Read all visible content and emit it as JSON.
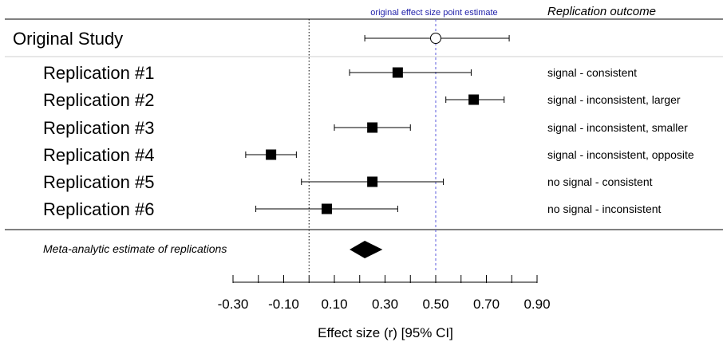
{
  "chart_data": {
    "type": "forest",
    "xlabel": "Effect size (r) [95% CI]",
    "xlim": [
      -0.3,
      0.9
    ],
    "xticks": [
      "-0.30",
      "-0.10",
      "0.10",
      "0.30",
      "0.50",
      "0.70",
      "0.90"
    ],
    "xtick_values": [
      -0.3,
      -0.1,
      0.1,
      0.3,
      0.5,
      0.7,
      0.9
    ],
    "minor_tick_values": [
      -0.3,
      -0.2,
      -0.1,
      0.0,
      0.1,
      0.2,
      0.3,
      0.4,
      0.5,
      0.6,
      0.7,
      0.8,
      0.9
    ],
    "null_line": 0.0,
    "reference_line": {
      "value": 0.5,
      "label": "original effect size point estimate",
      "color": "#5a5adc"
    },
    "header_outcome": "Replication outcome",
    "original": {
      "label": "Original Study",
      "estimate": 0.5,
      "lower": 0.22,
      "upper": 0.79
    },
    "replications": [
      {
        "label": "Replication #1",
        "estimate": 0.35,
        "lower": 0.16,
        "upper": 0.64,
        "outcome": "signal - consistent"
      },
      {
        "label": "Replication #2",
        "estimate": 0.65,
        "lower": 0.54,
        "upper": 0.77,
        "outcome": "signal - inconsistent, larger"
      },
      {
        "label": "Replication #3",
        "estimate": 0.25,
        "lower": 0.1,
        "upper": 0.4,
        "outcome": "signal - inconsistent, smaller"
      },
      {
        "label": "Replication #4",
        "estimate": -0.15,
        "lower": -0.25,
        "upper": -0.05,
        "outcome": "signal - inconsistent, opposite"
      },
      {
        "label": "Replication #5",
        "estimate": 0.25,
        "lower": -0.03,
        "upper": 0.53,
        "outcome": "no signal - consistent"
      },
      {
        "label": "Replication #6",
        "estimate": 0.07,
        "lower": -0.21,
        "upper": 0.35,
        "outcome": "no signal - inconsistent"
      }
    ],
    "meta": {
      "label": "Meta-analytic estimate of replications",
      "estimate": 0.22,
      "lower": 0.16,
      "upper": 0.29
    }
  }
}
